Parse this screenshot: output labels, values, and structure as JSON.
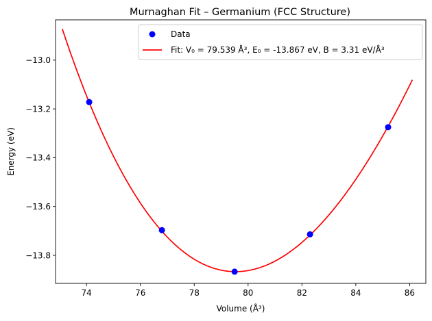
{
  "chart_data": {
    "type": "scatter",
    "title": "Murnaghan Fit – Germanium (FCC Structure)",
    "xlabel": "Volume (Å³)",
    "ylabel": "Energy (eV)",
    "xlim": [
      72.85,
      86.6
    ],
    "ylim": [
      -13.915,
      -12.835
    ],
    "xticks": [
      74,
      76,
      78,
      80,
      82,
      84,
      86
    ],
    "xtick_labels": [
      "74",
      "76",
      "78",
      "80",
      "82",
      "84",
      "86"
    ],
    "yticks": [
      -13.8,
      -13.6,
      -13.4,
      -13.2,
      -13.0
    ],
    "ytick_labels": [
      "−13.8",
      "−13.6",
      "−13.4",
      "−13.2",
      "−13.0"
    ],
    "grid": false,
    "legend_position": "top-right",
    "series": [
      {
        "name": "Data",
        "kind": "scatter",
        "color": "#0000ff",
        "x": [
          74.1,
          76.8,
          79.5,
          82.3,
          85.2
        ],
        "y": [
          -13.172,
          -13.697,
          -13.867,
          -13.714,
          -13.275
        ]
      },
      {
        "name": "Fit: V₀ = 79.539 Å³, E₀ = -13.867 eV, B = 3.31 eV/Å³",
        "kind": "line",
        "color": "#ff0000",
        "fit": {
          "model": "murnaghan",
          "V0": 79.539,
          "E0": -13.867,
          "B": 3.31,
          "Bp": 4.0,
          "x_range": [
            73.1,
            86.1
          ]
        }
      }
    ]
  }
}
